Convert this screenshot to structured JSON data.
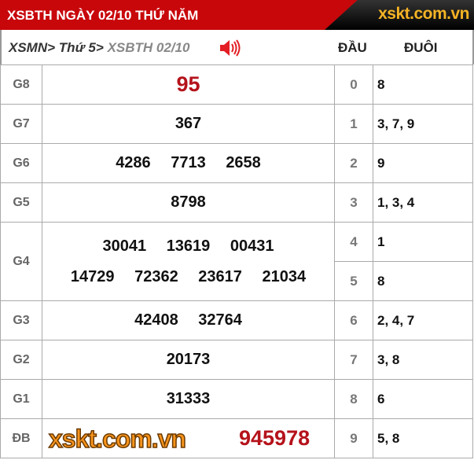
{
  "header": {
    "title": "XSBTH NGÀY 02/10 THỨ NĂM",
    "logo": "xskt.com.vn"
  },
  "breadcrumb": {
    "item1": "XSMN",
    "item2": "Thứ 5",
    "item3": "XSBTH 02/10",
    "sep": ">"
  },
  "columns": {
    "dau": "ĐẦU",
    "duoi": "ĐUÔI"
  },
  "prizes": [
    {
      "label": "G8",
      "numbers": [
        "95"
      ]
    },
    {
      "label": "G7",
      "numbers": [
        "367"
      ]
    },
    {
      "label": "G6",
      "numbers": [
        "4286",
        "7713",
        "2658"
      ]
    },
    {
      "label": "G5",
      "numbers": [
        "8798"
      ]
    },
    {
      "label": "G4",
      "numbers": [
        "30041",
        "13619",
        "00431",
        "14729",
        "72362",
        "23617",
        "21034"
      ]
    },
    {
      "label": "G3",
      "numbers": [
        "42408",
        "32764"
      ]
    },
    {
      "label": "G2",
      "numbers": [
        "20173"
      ]
    },
    {
      "label": "G1",
      "numbers": [
        "31333"
      ]
    },
    {
      "label": "ĐB",
      "numbers": [
        "945978"
      ]
    }
  ],
  "loto": [
    {
      "dau": "0",
      "duoi": "8"
    },
    {
      "dau": "1",
      "duoi": "3, 7, 9"
    },
    {
      "dau": "2",
      "duoi": "9"
    },
    {
      "dau": "3",
      "duoi": "1, 3, 4"
    },
    {
      "dau": "4",
      "duoi": "1"
    },
    {
      "dau": "5",
      "duoi": "8"
    },
    {
      "dau": "6",
      "duoi": "2, 4, 7"
    },
    {
      "dau": "7",
      "duoi": "3, 8"
    },
    {
      "dau": "8",
      "duoi": "6"
    },
    {
      "dau": "9",
      "duoi": "5, 8"
    }
  ],
  "watermark": "xskt.com.vn",
  "colors": {
    "header": "#c8070b",
    "special": "#b5121b",
    "logo": "#f5b324"
  }
}
